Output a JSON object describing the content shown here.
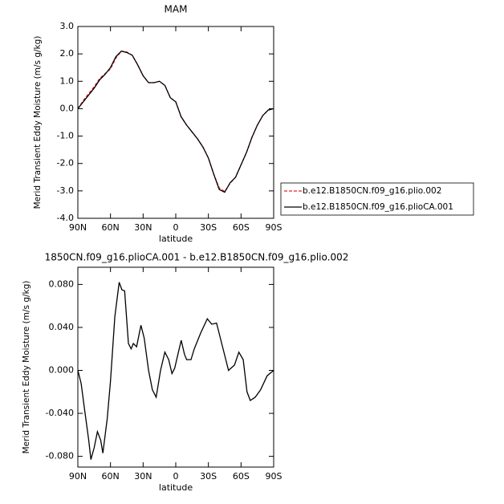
{
  "chart_data": [
    {
      "type": "line",
      "title": "MAM",
      "ylabel": "Merid Transient Eddy Moisture (m/s g/kg)",
      "xlabel": "latitude",
      "x": [
        90,
        85,
        80,
        75,
        70,
        65,
        60,
        55,
        50,
        45,
        40,
        35,
        30,
        25,
        20,
        15,
        10,
        5,
        0,
        -5,
        -10,
        -15,
        -20,
        -25,
        -30,
        -35,
        -40,
        -45,
        -50,
        -55,
        -60,
        -65,
        -70,
        -75,
        -80,
        -85,
        -90
      ],
      "series": [
        {
          "name": "b.e12.B1850CN.f09_g16.plio.002",
          "color": "#e8202a",
          "linestyle": "dashed",
          "values": [
            0.0,
            0.3,
            0.55,
            0.8,
            1.1,
            1.28,
            1.45,
            1.85,
            2.1,
            2.07,
            1.95,
            1.6,
            1.2,
            0.95,
            0.95,
            1.0,
            0.85,
            0.4,
            0.25,
            -0.3,
            -0.6,
            -0.85,
            -1.1,
            -1.4,
            -1.8,
            -2.4,
            -2.9,
            -3.02,
            -2.72,
            -2.5,
            -2.05,
            -1.6,
            -1.05,
            -0.6,
            -0.25,
            -0.05,
            0.0
          ]
        },
        {
          "name": "b.e12.B1850CN.f09_g16.plioCA.001",
          "color": "#000000",
          "linestyle": "solid",
          "values": [
            0.0,
            0.25,
            0.5,
            0.75,
            1.05,
            1.25,
            1.5,
            1.9,
            2.1,
            2.05,
            1.95,
            1.6,
            1.2,
            0.95,
            0.95,
            1.0,
            0.85,
            0.4,
            0.25,
            -0.3,
            -0.6,
            -0.85,
            -1.1,
            -1.4,
            -1.8,
            -2.4,
            -2.95,
            -3.05,
            -2.7,
            -2.5,
            -2.05,
            -1.6,
            -1.05,
            -0.6,
            -0.25,
            -0.05,
            0.0
          ]
        }
      ],
      "xlim": [
        90,
        -90
      ],
      "xticks": [
        {
          "value": 90,
          "label": "90N"
        },
        {
          "value": 60,
          "label": "60N"
        },
        {
          "value": 30,
          "label": "30N"
        },
        0,
        {
          "value": -30,
          "label": "30S"
        },
        {
          "value": -60,
          "label": "60S"
        },
        {
          "value": -90,
          "label": "90S"
        }
      ],
      "ylim": [
        -4,
        3
      ],
      "yticks": [
        {
          "value": -4,
          "label": "-4.0"
        },
        {
          "value": -3,
          "label": "-3.0"
        },
        {
          "value": -2,
          "label": "-2.0"
        },
        {
          "value": -1,
          "label": "-1.0"
        },
        {
          "value": 0,
          "label": "0.0"
        },
        {
          "value": 1,
          "label": "1.0"
        },
        {
          "value": 2,
          "label": "2.0"
        },
        {
          "value": 3,
          "label": "3.0"
        }
      ]
    },
    {
      "type": "line",
      "title": "1850CN.f09_g16.plioCA.001 - b.e12.B1850CN.f09_g16.plio.002",
      "ylabel": "Merid Transient Eddy Moisture (m/s g/kg)",
      "xlabel": "latitude",
      "x": [
        90,
        87,
        84,
        80,
        78,
        75,
        72,
        69,
        67,
        63,
        60,
        56,
        52,
        49.5,
        47,
        43.5,
        41,
        39,
        36,
        32,
        29,
        25,
        21.5,
        18,
        14,
        10,
        6.5,
        3.5,
        1,
        -2,
        -5,
        -8,
        -10,
        -14,
        -17,
        -23,
        -29,
        -33,
        -37.5,
        -43.5,
        -48.5,
        -54,
        -58,
        -62,
        -65.5,
        -68.5,
        -73,
        -78,
        -84,
        -90
      ],
      "series": [
        {
          "color": "#000000",
          "linestyle": "solid",
          "values": [
            0,
            -0.012,
            -0.035,
            -0.065,
            -0.083,
            -0.072,
            -0.057,
            -0.065,
            -0.077,
            -0.045,
            -0.01,
            0.05,
            0.082,
            0.075,
            0.074,
            0.025,
            0.02,
            0.025,
            0.022,
            0.042,
            0.03,
            0.0,
            -0.018,
            -0.025,
            0.0,
            0.017,
            0.01,
            -0.003,
            0.002,
            0.015,
            0.028,
            0.015,
            0.01,
            0.01,
            0.02,
            0.035,
            0.048,
            0.043,
            0.044,
            0.02,
            0,
            0.005,
            0.017,
            0.01,
            -0.02,
            -0.028,
            -0.025,
            -0.018,
            -0.005,
            0
          ]
        }
      ],
      "xlim": [
        90,
        -90
      ],
      "xticks": [
        {
          "value": 90,
          "label": "90N"
        },
        {
          "value": 60,
          "label": "60N"
        },
        {
          "value": 30,
          "label": "30N"
        },
        0,
        {
          "value": -30,
          "label": "30S"
        },
        {
          "value": -60,
          "label": "60S"
        },
        {
          "value": -90,
          "label": "90S"
        }
      ],
      "ylim": [
        -0.09,
        0.096
      ],
      "yticks": [
        {
          "value": -0.08,
          "label": "-0.080"
        },
        {
          "value": -0.04,
          "label": "-0.040"
        },
        {
          "value": 0,
          "label": "0.000"
        },
        {
          "value": 0.04,
          "label": "0.040"
        },
        {
          "value": 0.08,
          "label": "0.080"
        }
      ]
    }
  ]
}
